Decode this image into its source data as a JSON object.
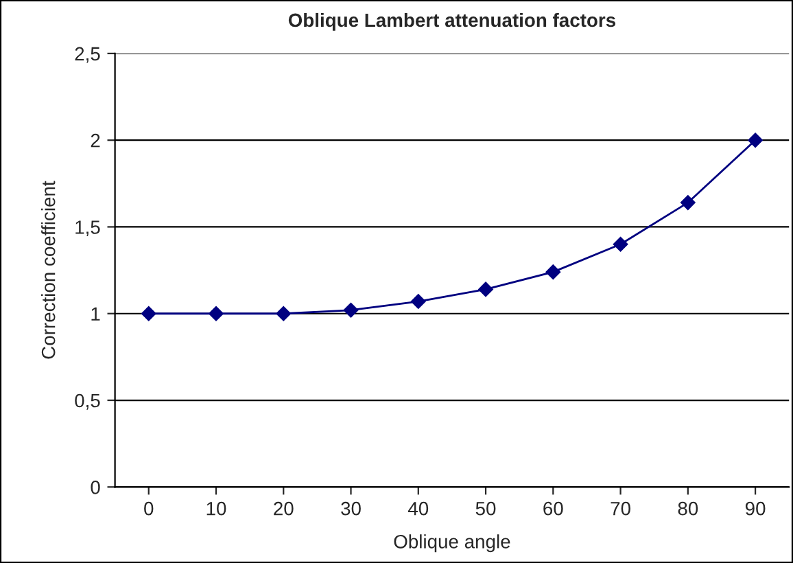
{
  "chart_data": {
    "type": "line",
    "title": "Oblique Lambert attenuation factors",
    "xlabel": "Oblique angle",
    "ylabel": "Correction coefficient",
    "categories": [
      "0",
      "10",
      "20",
      "30",
      "40",
      "50",
      "60",
      "70",
      "80",
      "90"
    ],
    "series": [
      {
        "color": "#000080",
        "values": [
          1.0,
          1.0,
          1.0,
          1.02,
          1.07,
          1.14,
          1.24,
          1.4,
          1.64,
          2.0
        ]
      }
    ],
    "ylim": [
      0,
      2.5
    ],
    "yticks": [
      0,
      {
        "value": 0.5,
        "label": "0,5"
      },
      1,
      {
        "value": 1.5,
        "label": "1,5"
      },
      2,
      {
        "value": 2.5,
        "label": "2,5"
      }
    ],
    "grid": "y",
    "marker": "diamond",
    "line_style": "solid",
    "legend": false
  }
}
